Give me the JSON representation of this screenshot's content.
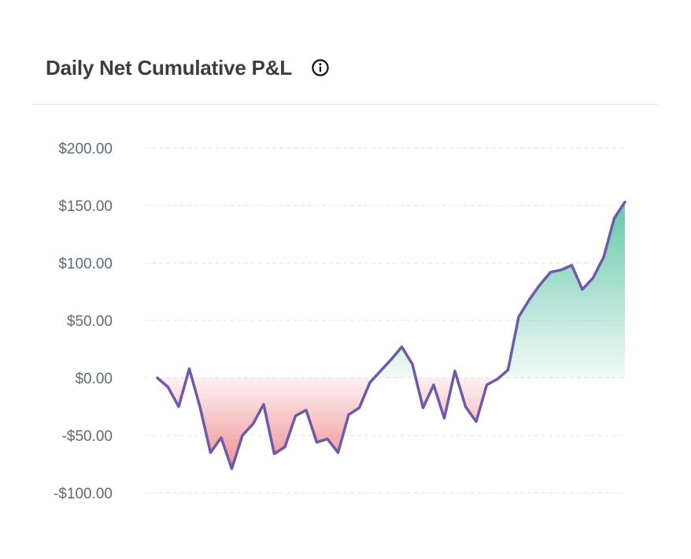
{
  "card": {
    "title": "Daily Net Cumulative P&L",
    "info_icon": "info-circle-icon"
  },
  "chart_data": {
    "type": "area",
    "title": "Daily Net Cumulative P&L",
    "xlabel": "",
    "ylabel": "",
    "ylim": [
      -100,
      200
    ],
    "yticks": [
      200,
      150,
      100,
      50,
      0,
      -50,
      -100
    ],
    "ytick_labels": [
      "$200.00",
      "$150.00",
      "$100.00",
      "$50.00",
      "$0.00",
      "-$50.00",
      "-$100.00"
    ],
    "grid": true,
    "legend": "none",
    "positive_color": "#5cc4a4",
    "negative_color": "#f08a8e",
    "line_color": "#6e5aaa",
    "series": [
      {
        "values": [
          0,
          -8,
          -25,
          8,
          -25,
          -65,
          -52,
          -79,
          -50,
          -40,
          -23,
          -66,
          -60,
          -33,
          -28,
          -56,
          -53,
          -65,
          -32,
          -26,
          -4,
          6,
          16,
          27,
          12,
          -26,
          -6,
          -35,
          6,
          -25,
          -38,
          -6,
          -1,
          7,
          53,
          68,
          81,
          92,
          94,
          98,
          77,
          87,
          105,
          139,
          153
        ]
      }
    ]
  }
}
